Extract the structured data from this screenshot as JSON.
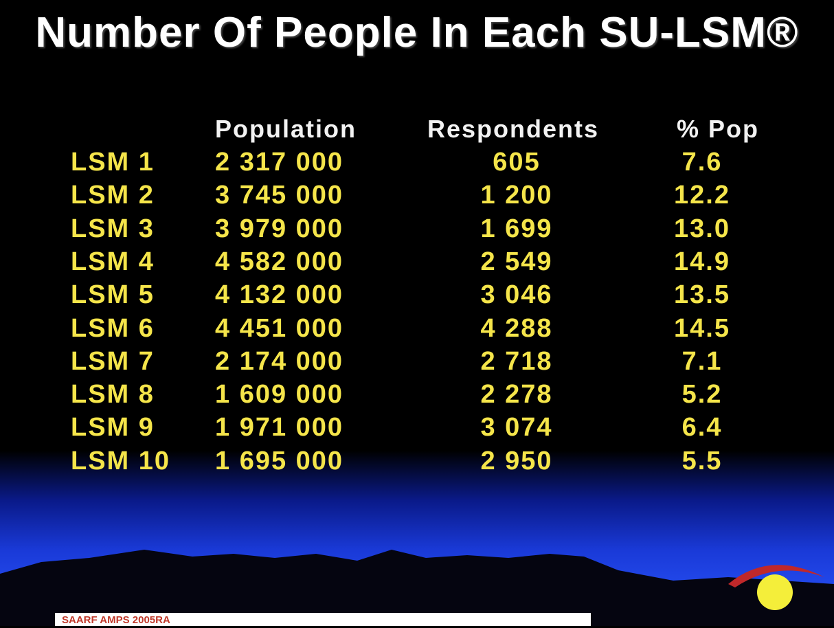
{
  "title": "Number Of People In Each SU-LSM®",
  "table": {
    "header": [
      "Population",
      "Respondents",
      "% Pop"
    ],
    "rows": [
      [
        "LSM 1",
        "2 317 000",
        "605",
        "7.6"
      ],
      [
        "LSM 2",
        "3 745 000",
        "1 200",
        "12.2"
      ],
      [
        "LSM 3",
        "3 979 000",
        "1 699",
        "13.0"
      ],
      [
        "LSM 4",
        "4 582 000",
        "2 549",
        "14.9"
      ],
      [
        "LSM 5",
        "4 132 000",
        "3 046",
        "13.5"
      ],
      [
        "LSM 6",
        "4 451 000",
        "4 288",
        "14.5"
      ],
      [
        "LSM 7",
        "2 174 000",
        "2 718",
        "7.1"
      ],
      [
        "LSM 8",
        "1 609 000",
        "2 278",
        "5.2"
      ],
      [
        "LSM 9",
        "1 971 000",
        "3 074",
        "6.4"
      ],
      [
        "LSM 10",
        "1 695 000",
        "2 950",
        "5.5"
      ]
    ]
  },
  "footer": "SAARF AMPS 2005RA"
}
